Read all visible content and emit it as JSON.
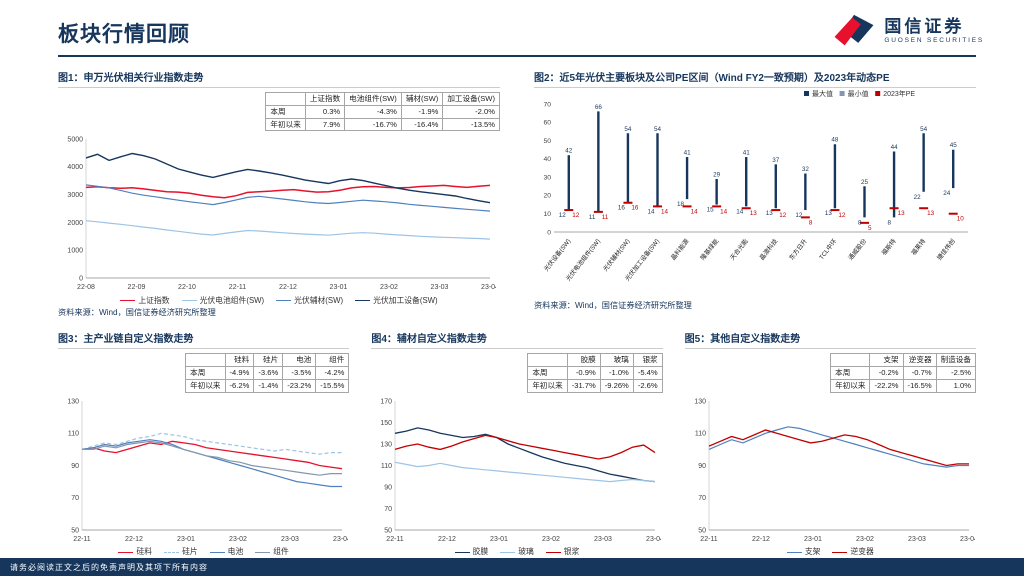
{
  "header": {
    "title": "板块行情回顾",
    "brand_cn": "国信证券",
    "brand_en": "GUOSEN SECURITIES"
  },
  "footer": {
    "disclaimer": "请务必阅读正文之后的免责声明及其项下所有内容"
  },
  "colors": {
    "brand_navy": "#16365c",
    "brand_red": "#e8112d",
    "pe_bar_navy": "#17365d",
    "pe_marker_red": "#c00000"
  },
  "figures": {
    "fig1": {
      "title": "图1：申万光伏相关行业指数走势",
      "source": "资料来源：Wind，国信证券经济研究所整理",
      "table": {
        "col_headers": [
          "上证指数",
          "电池组件(SW)",
          "辅材(SW)",
          "加工设备(SW)"
        ],
        "rows": [
          {
            "label": "本周",
            "values": [
              "0.3%",
              "-4.3%",
              "-1.9%",
              "-2.0%"
            ]
          },
          {
            "label": "年初以来",
            "values": [
              "7.9%",
              "-16.7%",
              "-16.4%",
              "-13.5%"
            ]
          }
        ]
      }
    },
    "fig2": {
      "title": "图2：近5年光伏主要板块及公司PE区间（Wind FY2一致预期）及2023年动态PE",
      "source": "资料来源：Wind，国信证券经济研究所整理"
    },
    "fig3": {
      "title": "图3：主产业链自定义指数走势",
      "source": "资料来源：Wind，国信证券经济研究所整理，指数说明见尾页",
      "table": {
        "col_headers": [
          "硅料",
          "硅片",
          "电池",
          "组件"
        ],
        "rows": [
          {
            "label": "本周",
            "values": [
              "-4.9%",
              "-3.6%",
              "-3.5%",
              "-4.2%"
            ]
          },
          {
            "label": "年初以来",
            "values": [
              "-6.2%",
              "-1.4%",
              "-23.2%",
              "-15.5%"
            ]
          }
        ]
      }
    },
    "fig4": {
      "title": "图4：辅材自定义指数走势",
      "source": "资料来源：Wind，国信证券经济研究所整理",
      "table": {
        "col_headers": [
          "胶膜",
          "玻璃",
          "银浆"
        ],
        "rows": [
          {
            "label": "本周",
            "values": [
              "-0.9%",
              "-1.0%",
              "-5.4%"
            ]
          },
          {
            "label": "年初以来",
            "values": [
              "-31.7%",
              "-9.26%",
              "-2.6%"
            ]
          }
        ]
      }
    },
    "fig5": {
      "title": "图5：其他自定义指数走势",
      "source": "资料来源：Wind，国信证券经济研究所整理",
      "table": {
        "col_headers": [
          "支架",
          "逆变器",
          "制造设备"
        ],
        "rows": [
          {
            "label": "本周",
            "values": [
              "-0.2%",
              "-0.7%",
              "-2.5%"
            ]
          },
          {
            "label": "年初以来",
            "values": [
              "-22.2%",
              "-16.5%",
              "1.0%"
            ]
          }
        ]
      }
    }
  },
  "chart_data": [
    {
      "type": "line",
      "title": "申万光伏相关行业指数走势",
      "ylim": [
        0,
        5000
      ],
      "yticks": [
        0,
        1000,
        2000,
        3000,
        4000,
        5000
      ],
      "xticks": [
        "22-08",
        "22-09",
        "22-10",
        "22-11",
        "22-12",
        "23-01",
        "23-02",
        "23-03",
        "23-04"
      ],
      "legend_position": "bottom",
      "series": [
        {
          "name": "上证指数",
          "color": "#e8112d",
          "width": 1.5,
          "values": [
            3260,
            3280,
            3245,
            3230,
            3245,
            3205,
            3150,
            3105,
            3090,
            3050,
            2980,
            2920,
            2890,
            2960,
            3080,
            3105,
            3125,
            3160,
            3180,
            3130,
            3090,
            3100,
            3160,
            3240,
            3280,
            3290,
            3260,
            3240,
            3255,
            3290,
            3310,
            3330,
            3290,
            3260,
            3300,
            3330
          ]
        },
        {
          "name": "光伏电池组件(SW)",
          "color": "#9dc3e6",
          "width": 1.2,
          "values": [
            2060,
            2020,
            1975,
            1930,
            1880,
            1830,
            1785,
            1725,
            1680,
            1625,
            1580,
            1545,
            1605,
            1660,
            1710,
            1690,
            1660,
            1630,
            1600,
            1580,
            1560,
            1540,
            1575,
            1610,
            1630,
            1610,
            1580,
            1550,
            1525,
            1500,
            1480,
            1465,
            1450,
            1435,
            1420,
            1400
          ]
        },
        {
          "name": "光伏辅材(SW)",
          "color": "#4f81bd",
          "width": 1.2,
          "values": [
            3350,
            3300,
            3240,
            3150,
            3050,
            2980,
            2920,
            2860,
            2800,
            2740,
            2690,
            2640,
            2715,
            2810,
            2900,
            2940,
            2890,
            2840,
            2790,
            2740,
            2700,
            2680,
            2715,
            2760,
            2800,
            2770,
            2740,
            2700,
            2650,
            2610,
            2580,
            2540,
            2505,
            2470,
            2440,
            2405
          ]
        },
        {
          "name": "光伏加工设备(SW)",
          "color": "#17365d",
          "width": 1.4,
          "values": [
            4320,
            4450,
            4230,
            4360,
            4480,
            4400,
            4280,
            4100,
            3920,
            3810,
            3700,
            3620,
            3720,
            3820,
            3905,
            3850,
            3780,
            3700,
            3610,
            3520,
            3460,
            3400,
            3500,
            3560,
            3505,
            3410,
            3320,
            3230,
            3160,
            3100,
            3050,
            3000,
            2950,
            2860,
            2780,
            2710
          ]
        }
      ]
    },
    {
      "type": "range",
      "title": "近5年光伏主要板块及公司PE区间（Wind FY2一致预期）及2023年动态PE",
      "ylim": [
        0,
        70
      ],
      "yticks": [
        0,
        10,
        20,
        30,
        40,
        50,
        60,
        70
      ],
      "legend": [
        "最大值",
        "最小值",
        "2023年PE"
      ],
      "categories": [
        "光伏设备(SW)",
        "光伏电池组件(SW)",
        "光伏辅材(SW)",
        "光伏加工设备(SW)",
        "晶科能源",
        "隆基绿能",
        "天合光能",
        "晶澳科技",
        "东方日升",
        "TCL中环",
        "通威股份",
        "福斯特",
        "福莱特",
        "捷佳伟创"
      ],
      "max": [
        42,
        66,
        54,
        54,
        41,
        29,
        41,
        37,
        32,
        48,
        25,
        44,
        54,
        45
      ],
      "min": [
        12,
        11,
        16,
        14,
        18,
        15,
        14,
        13,
        12,
        13,
        8,
        8,
        22,
        24
      ],
      "pe_2023": [
        12,
        11,
        16,
        14,
        14,
        14,
        13,
        12,
        8,
        12,
        5,
        13,
        13,
        10
      ]
    },
    {
      "type": "line",
      "title": "主产业链自定义指数走势",
      "ylim": [
        50,
        130
      ],
      "yticks": [
        50,
        70,
        90,
        110,
        130
      ],
      "xticks": [
        "22-11",
        "22-12",
        "23-01",
        "23-02",
        "23-03",
        "23-04"
      ],
      "legend_position": "bottom",
      "series": [
        {
          "name": "硅料",
          "color": "#e8112d",
          "width": 1.3,
          "values": [
            100,
            101,
            99,
            98,
            100,
            102,
            104,
            103,
            105,
            104,
            103,
            101,
            100,
            99,
            98,
            97,
            96,
            95,
            94,
            93,
            92,
            90,
            89,
            88
          ]
        },
        {
          "name": "硅片",
          "color": "#9dc3e6",
          "width": 1.2,
          "dash": "4 2.5",
          "values": [
            100,
            102,
            104,
            103,
            105,
            107,
            108,
            110,
            109,
            108,
            106,
            105,
            104,
            103,
            102,
            101,
            100,
            99,
            100,
            99,
            98,
            97,
            98,
            98
          ]
        },
        {
          "name": "电池",
          "color": "#4f81bd",
          "width": 1.2,
          "values": [
            100,
            101,
            103,
            102,
            104,
            105,
            106,
            105,
            103,
            100,
            98,
            96,
            94,
            92,
            90,
            88,
            86,
            84,
            82,
            80,
            79,
            78,
            77,
            77
          ]
        },
        {
          "name": "组件",
          "color": "#8496b0",
          "width": 1.2,
          "values": [
            100,
            100,
            102,
            101,
            103,
            104,
            105,
            104,
            102,
            100,
            98,
            96,
            95,
            93,
            92,
            90,
            89,
            88,
            87,
            86,
            85,
            84,
            85,
            85
          ]
        }
      ]
    },
    {
      "type": "line",
      "title": "辅材自定义指数走势",
      "ylim": [
        50,
        170
      ],
      "yticks": [
        50,
        70,
        90,
        110,
        130,
        150,
        170
      ],
      "xticks": [
        "22-11",
        "22-12",
        "23-01",
        "23-02",
        "23-03",
        "23-04"
      ],
      "legend_position": "bottom",
      "series": [
        {
          "name": "胶膜",
          "color": "#17365d",
          "width": 1.3,
          "values": [
            140,
            142,
            145,
            143,
            140,
            138,
            136,
            137,
            139,
            136,
            130,
            126,
            122,
            118,
            115,
            112,
            110,
            108,
            105,
            102,
            100,
            98,
            96,
            95
          ]
        },
        {
          "name": "玻璃",
          "color": "#9dc3e6",
          "width": 1.2,
          "values": [
            113,
            111,
            109,
            110,
            112,
            110,
            108,
            107,
            106,
            105,
            104,
            103,
            102,
            101,
            100,
            99,
            98,
            97,
            96,
            95,
            96,
            97,
            96,
            95
          ]
        },
        {
          "name": "银浆",
          "color": "#c00000",
          "width": 1.3,
          "values": [
            125,
            128,
            130,
            127,
            125,
            128,
            132,
            135,
            138,
            136,
            133,
            130,
            128,
            126,
            124,
            122,
            120,
            118,
            116,
            118,
            122,
            127,
            129,
            122
          ]
        }
      ]
    },
    {
      "type": "line",
      "title": "其他自定义指数走势",
      "ylim": [
        50,
        130
      ],
      "yticks": [
        50,
        70,
        90,
        110,
        130
      ],
      "xticks": [
        "22-11",
        "22-12",
        "23-01",
        "23-02",
        "23-03",
        "23-04"
      ],
      "legend_position": "bottom",
      "series": [
        {
          "name": "支架",
          "color": "#4f81bd",
          "width": 1.2,
          "values": [
            100,
            103,
            106,
            104,
            107,
            110,
            112,
            114,
            113,
            111,
            109,
            107,
            105,
            103,
            101,
            99,
            97,
            95,
            93,
            91,
            90,
            89,
            90,
            90
          ]
        },
        {
          "name": "逆变器",
          "color": "#c00000",
          "width": 1.3,
          "values": [
            102,
            105,
            108,
            106,
            109,
            112,
            110,
            108,
            106,
            104,
            105,
            107,
            109,
            108,
            106,
            103,
            100,
            98,
            96,
            94,
            92,
            90,
            91,
            91
          ]
        }
      ]
    }
  ]
}
